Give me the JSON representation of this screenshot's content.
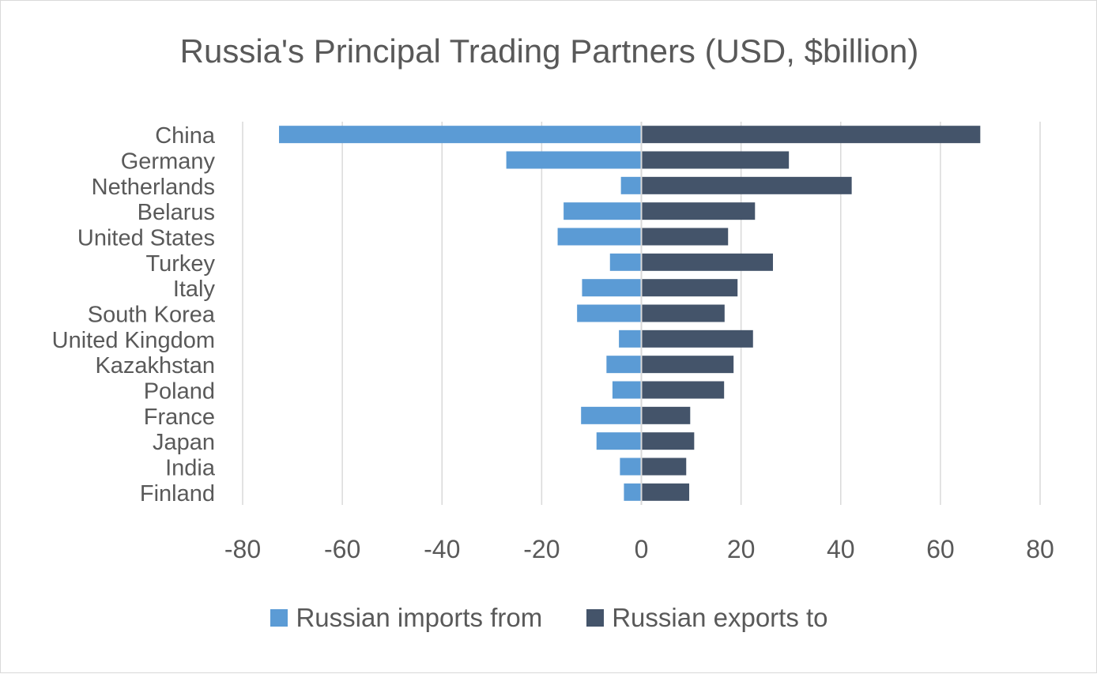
{
  "chart_data": {
    "type": "bar",
    "orientation": "horizontal",
    "title": "Russia's Principal Trading Partners (USD, $billion)",
    "categories": [
      "China",
      "Germany",
      "Netherlands",
      "Belarus",
      "United States",
      "Turkey",
      "Italy",
      "South Korea",
      "United Kingdom",
      "Kazakhstan",
      "Poland",
      "France",
      "Japan",
      "India",
      "Finland"
    ],
    "series": [
      {
        "name": "Russian imports from",
        "color": "#5b9bd5",
        "values": [
          -72.7,
          -27.1,
          -4.1,
          -15.6,
          -16.8,
          -6.3,
          -11.9,
          -12.9,
          -4.5,
          -7.0,
          -5.8,
          -12.1,
          -9.0,
          -4.3,
          -3.5
        ]
      },
      {
        "name": "Russian exports to",
        "color": "#44546a",
        "values": [
          68.0,
          29.6,
          42.2,
          22.8,
          17.4,
          26.4,
          19.3,
          16.7,
          22.4,
          18.5,
          16.6,
          9.8,
          10.6,
          9.0,
          9.6
        ]
      }
    ],
    "xlim": [
      -80,
      80
    ],
    "xticks": [
      "-80",
      "-60",
      "-40",
      "-20",
      "0",
      "20",
      "40",
      "60",
      "80"
    ],
    "grid": "vertical",
    "legend": "bottom"
  }
}
